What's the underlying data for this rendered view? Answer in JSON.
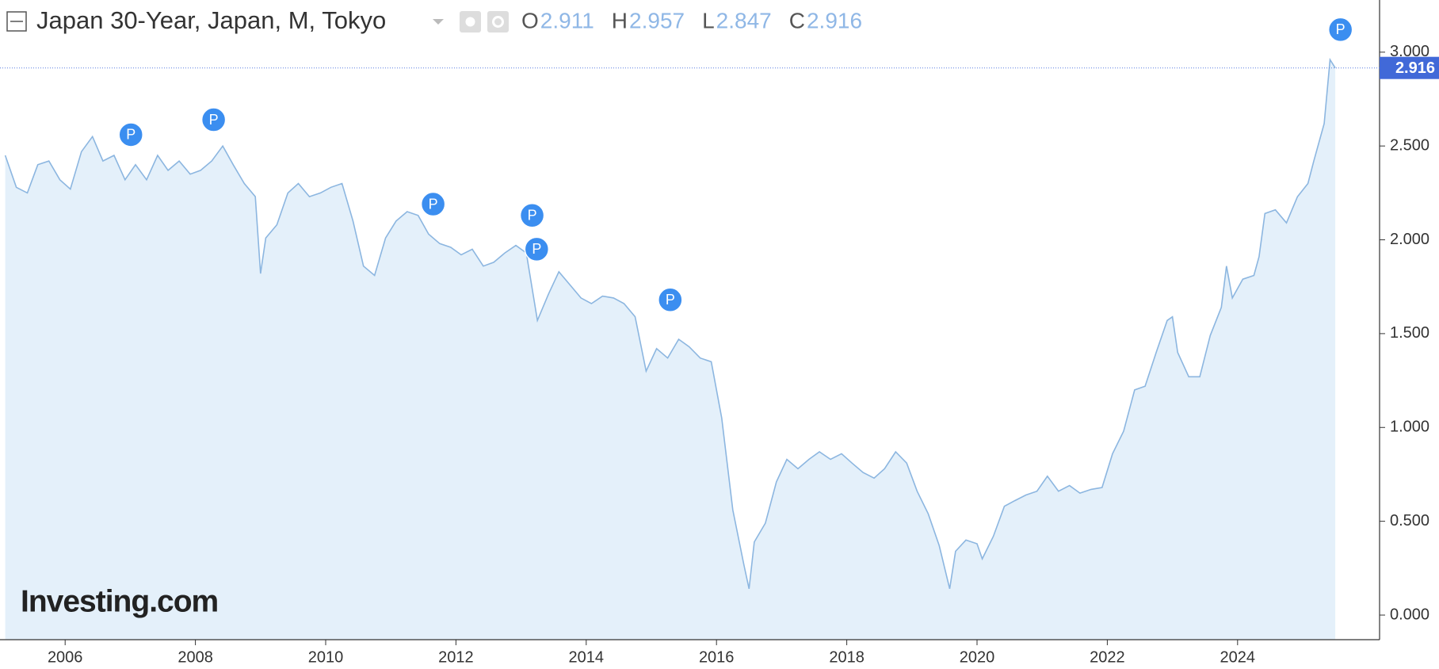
{
  "chart_data": {
    "type": "area",
    "title": "Japan 30-Year, Japan, M, Tokyo",
    "ohlc": [
      {
        "name": "O",
        "value": 2.911
      },
      {
        "name": "H",
        "value": 2.957
      },
      {
        "name": "L",
        "value": 2.847
      },
      {
        "name": "C",
        "value": 2.916
      }
    ],
    "last_value": 2.916,
    "logo": "Investing.com",
    "color": "#8cb6e0",
    "fill": "#e4f0fa",
    "xlim": [
      2005.0,
      2026.18
    ],
    "ylim": [
      -0.131,
      3.278
    ],
    "xticks": [
      2006,
      2008,
      2010,
      2012,
      2014,
      2016,
      2018,
      2020,
      2022,
      2024
    ],
    "yticks": [
      {
        "value": 0,
        "label": "0.000"
      },
      {
        "value": 0.5,
        "label": "0.500"
      },
      {
        "value": 1,
        "label": "1.000"
      },
      {
        "value": 1.5,
        "label": "1.500"
      },
      {
        "value": 2,
        "label": "2.000"
      },
      {
        "value": 2.5,
        "label": "2.500"
      },
      {
        "value": 3,
        "label": "3.000"
      }
    ],
    "x": [
      2005.08,
      2005.25,
      2005.42,
      2005.58,
      2005.75,
      2005.92,
      2006.08,
      2006.25,
      2006.42,
      2006.58,
      2006.75,
      2006.92,
      2007.08,
      2007.25,
      2007.42,
      2007.58,
      2007.75,
      2007.92,
      2008.08,
      2008.25,
      2008.42,
      2008.58,
      2008.75,
      2008.92,
      2009.0,
      2009.08,
      2009.25,
      2009.42,
      2009.58,
      2009.75,
      2009.92,
      2010.08,
      2010.25,
      2010.42,
      2010.58,
      2010.75,
      2010.92,
      2011.08,
      2011.25,
      2011.42,
      2011.58,
      2011.75,
      2011.92,
      2012.08,
      2012.25,
      2012.42,
      2012.58,
      2012.75,
      2012.92,
      2013.08,
      2013.25,
      2013.42,
      2013.58,
      2013.75,
      2013.92,
      2014.08,
      2014.25,
      2014.42,
      2014.58,
      2014.75,
      2014.92,
      2015.08,
      2015.25,
      2015.42,
      2015.58,
      2015.75,
      2015.92,
      2016.08,
      2016.25,
      2016.42,
      2016.5,
      2016.58,
      2016.75,
      2016.92,
      2017.08,
      2017.25,
      2017.42,
      2017.58,
      2017.75,
      2017.92,
      2018.08,
      2018.25,
      2018.42,
      2018.58,
      2018.75,
      2018.92,
      2019.08,
      2019.25,
      2019.42,
      2019.58,
      2019.67,
      2019.83,
      2020.0,
      2020.08,
      2020.25,
      2020.42,
      2020.58,
      2020.75,
      2020.92,
      2021.08,
      2021.25,
      2021.42,
      2021.58,
      2021.75,
      2021.92,
      2022.08,
      2022.25,
      2022.42,
      2022.58,
      2022.75,
      2022.92,
      2023.0,
      2023.08,
      2023.25,
      2023.42,
      2023.58,
      2023.75,
      2023.83,
      2023.92,
      2024.08,
      2024.25,
      2024.33,
      2024.42,
      2024.58,
      2024.75,
      2024.92,
      2025.08,
      2025.17,
      2025.33,
      2025.42,
      2025.5
    ],
    "values": [
      2.45,
      2.28,
      2.25,
      2.4,
      2.42,
      2.32,
      2.27,
      2.47,
      2.55,
      2.42,
      2.45,
      2.32,
      2.4,
      2.32,
      2.45,
      2.37,
      2.42,
      2.35,
      2.37,
      2.42,
      2.5,
      2.4,
      2.3,
      2.23,
      1.82,
      2.01,
      2.08,
      2.25,
      2.3,
      2.23,
      2.25,
      2.28,
      2.3,
      2.1,
      1.86,
      1.81,
      2.01,
      2.1,
      2.15,
      2.13,
      2.03,
      1.98,
      1.96,
      1.92,
      1.95,
      1.86,
      1.88,
      1.93,
      1.97,
      1.93,
      1.57,
      1.71,
      1.83,
      1.76,
      1.69,
      1.66,
      1.7,
      1.69,
      1.66,
      1.59,
      1.3,
      1.42,
      1.37,
      1.47,
      1.43,
      1.37,
      1.35,
      1.05,
      0.56,
      0.27,
      0.14,
      0.39,
      0.49,
      0.71,
      0.83,
      0.78,
      0.83,
      0.87,
      0.83,
      0.86,
      0.81,
      0.76,
      0.73,
      0.78,
      0.87,
      0.81,
      0.66,
      0.54,
      0.37,
      0.14,
      0.34,
      0.4,
      0.38,
      0.3,
      0.42,
      0.58,
      0.61,
      0.64,
      0.66,
      0.74,
      0.66,
      0.69,
      0.65,
      0.67,
      0.68,
      0.86,
      0.98,
      1.2,
      1.22,
      1.4,
      1.57,
      1.59,
      1.4,
      1.27,
      1.27,
      1.49,
      1.64,
      1.86,
      1.69,
      1.79,
      1.81,
      1.91,
      2.14,
      2.16,
      2.09,
      2.23,
      2.3,
      2.42,
      2.62,
      2.96,
      2.916
    ],
    "markers": [
      {
        "x": 2007.01,
        "y": 2.56,
        "label": "P"
      },
      {
        "x": 2008.28,
        "y": 2.64,
        "label": "P"
      },
      {
        "x": 2011.65,
        "y": 2.19,
        "label": "P"
      },
      {
        "x": 2013.17,
        "y": 2.13,
        "label": "P"
      },
      {
        "x": 2013.24,
        "y": 1.95,
        "label": "P"
      },
      {
        "x": 2015.29,
        "y": 1.68,
        "label": "P"
      },
      {
        "x": 2025.58,
        "y": 3.12,
        "label": "P"
      }
    ]
  }
}
